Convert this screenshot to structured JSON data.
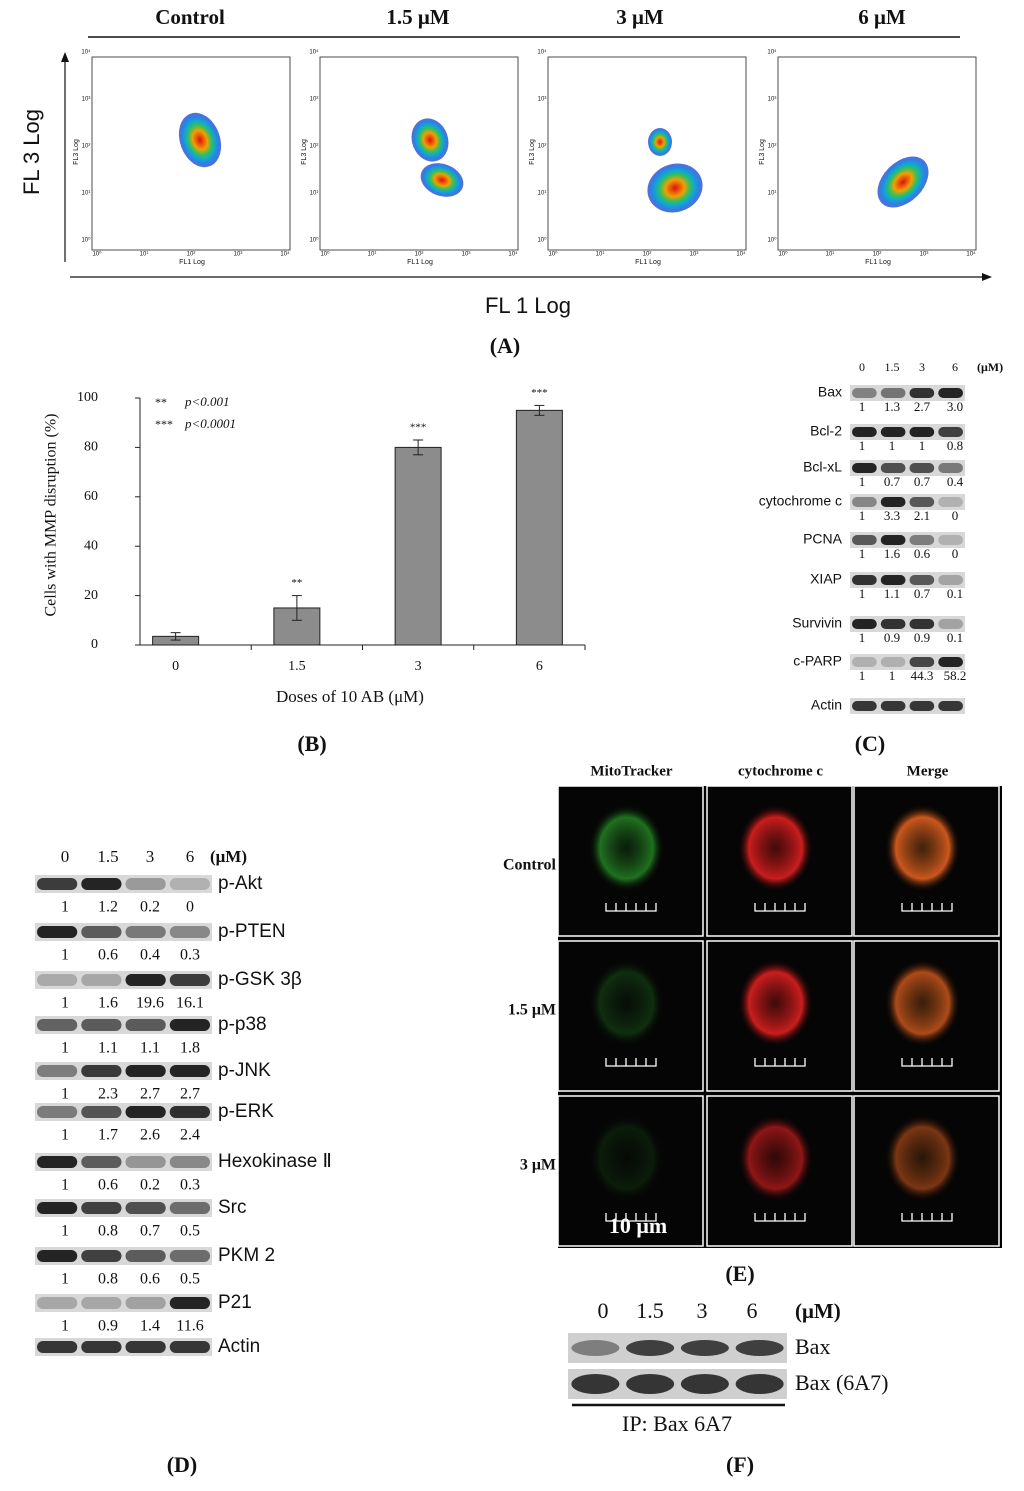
{
  "panel_a": {
    "conditions": [
      "Control",
      "1.5 μM",
      "3 μM",
      "6 μM"
    ],
    "x_label": "FL 1 Log",
    "y_label": "FL 3 Log",
    "plot_x_label": "FL1 Log",
    "plot_y_label": "FL3 Log",
    "ticks": [
      "10⁰",
      "10¹",
      "10²",
      "10³",
      "10⁴"
    ],
    "caption": "(A)"
  },
  "panel_b": {
    "type": "bar",
    "categories": [
      "0",
      "1.5",
      "3",
      "6"
    ],
    "values": [
      3.5,
      15,
      80,
      95
    ],
    "errors": [
      1.5,
      5,
      3,
      2
    ],
    "significance": [
      null,
      "**",
      "***",
      "***"
    ],
    "color": "#8c8c8c",
    "ylim": [
      0,
      100
    ],
    "yticks": [
      0,
      20,
      40,
      60,
      80,
      100
    ],
    "y_label": "Cells with MMP disruption (%)",
    "x_label": "Doses of 10 AB (μM)",
    "legend": [
      {
        "symbol": "**",
        "text": "p<0.001"
      },
      {
        "symbol": "***",
        "text": "p<0.0001"
      }
    ],
    "caption": "(B)"
  },
  "panel_c": {
    "doses": [
      "0",
      "1.5",
      "3",
      "6"
    ],
    "unit": "(μM)",
    "blots": [
      {
        "name": "Bax",
        "values": [
          "1",
          "1.3",
          "2.7",
          "3.0"
        ]
      },
      {
        "name": "Bcl-2",
        "values": [
          "1",
          "1",
          "1",
          "0.8"
        ]
      },
      {
        "name": "Bcl-xL",
        "values": [
          "1",
          "0.7",
          "0.7",
          "0.4"
        ]
      },
      {
        "name": "cytochrome c",
        "values": [
          "1",
          "3.3",
          "2.1",
          "0"
        ]
      },
      {
        "name": "PCNA",
        "values": [
          "1",
          "1.6",
          "0.6",
          "0"
        ]
      },
      {
        "name": "XIAP",
        "values": [
          "1",
          "1.1",
          "0.7",
          "0.1"
        ]
      },
      {
        "name": "Survivin",
        "values": [
          "1",
          "0.9",
          "0.9",
          "0.1"
        ]
      },
      {
        "name": "c-PARP",
        "values": [
          "1",
          "1",
          "44.3",
          "58.2"
        ]
      },
      {
        "name": "Actin",
        "values": null
      }
    ],
    "caption": "(C)"
  },
  "panel_d": {
    "doses": [
      "0",
      "1.5",
      "3",
      "6"
    ],
    "unit": "(μM)",
    "blots": [
      {
        "name": "p-Akt",
        "values": [
          "1",
          "1.2",
          "0.2",
          "0"
        ]
      },
      {
        "name": "p-PTEN",
        "values": [
          "1",
          "0.6",
          "0.4",
          "0.3"
        ]
      },
      {
        "name": "p-GSK 3β",
        "values": [
          "1",
          "1.6",
          "19.6",
          "16.1"
        ]
      },
      {
        "name": "p-p38",
        "values": [
          "1",
          "1.1",
          "1.1",
          "1.8"
        ]
      },
      {
        "name": "p-JNK",
        "values": [
          "1",
          "2.3",
          "2.7",
          "2.7"
        ]
      },
      {
        "name": "p-ERK",
        "values": [
          "1",
          "1.7",
          "2.6",
          "2.4"
        ]
      },
      {
        "name": "Hexokinase Ⅱ",
        "values": [
          "1",
          "0.6",
          "0.2",
          "0.3"
        ]
      },
      {
        "name": "Src",
        "values": [
          "1",
          "0.8",
          "0.7",
          "0.5"
        ]
      },
      {
        "name": "PKM 2",
        "values": [
          "1",
          "0.8",
          "0.6",
          "0.5"
        ]
      },
      {
        "name": "P21",
        "values": [
          "1",
          "0.9",
          "1.4",
          "11.6"
        ]
      },
      {
        "name": "Actin",
        "values": null
      }
    ],
    "caption": "(D)"
  },
  "panel_e": {
    "columns": [
      "MitoTracker",
      "cytochrome c",
      "Merge"
    ],
    "rows": [
      "Control",
      "1.5 μM",
      "3 μM"
    ],
    "scale": "10 μm",
    "caption": "(E)"
  },
  "panel_f": {
    "doses": [
      "0",
      "1.5",
      "3",
      "6"
    ],
    "unit": "(μM)",
    "blots": [
      "Bax",
      "Bax (6A7)"
    ],
    "ip": "IP: Bax 6A7",
    "caption": "(F)"
  }
}
